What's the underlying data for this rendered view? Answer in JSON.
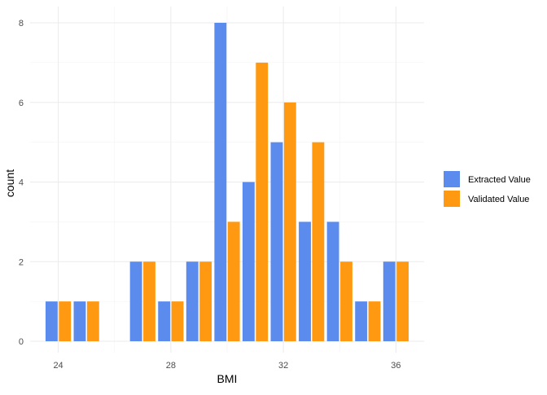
{
  "chart_data": {
    "type": "bar",
    "xlabel": "BMI",
    "ylabel": "count",
    "x": [
      24,
      25,
      27,
      28,
      29,
      30,
      31,
      32,
      33,
      34,
      35,
      36
    ],
    "series": [
      {
        "name": "Extracted Value",
        "color": "#5b8ced",
        "values": [
          1,
          1,
          2,
          1,
          2,
          8,
          4,
          5,
          3,
          3,
          1,
          2
        ]
      },
      {
        "name": "Validated Value",
        "color": "#ff9912",
        "values": [
          1,
          1,
          2,
          1,
          2,
          3,
          7,
          6,
          5,
          2,
          1,
          2
        ]
      }
    ],
    "xlim": [
      23,
      37
    ],
    "ylim": [
      0,
      8
    ],
    "x_ticks": [
      "24",
      "28",
      "32",
      "36"
    ],
    "x_tick_values": [
      24,
      28,
      32,
      36
    ],
    "y_ticks": [
      "0",
      "2",
      "4",
      "6",
      "8"
    ],
    "y_tick_values": [
      0,
      2,
      4,
      6,
      8
    ],
    "grid": true,
    "legend_position": "right"
  }
}
